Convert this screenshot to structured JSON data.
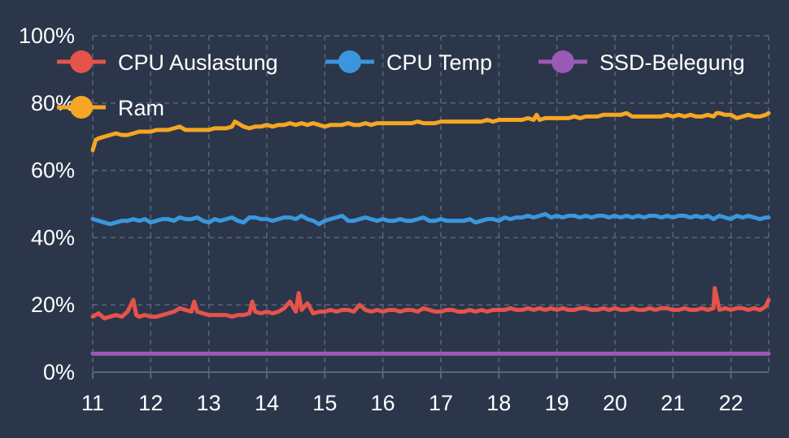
{
  "colors": {
    "background": "#2b364b",
    "grid": "#5a6579",
    "text": "#ffffff"
  },
  "chart_data": {
    "type": "line",
    "title": "",
    "xlabel": "",
    "ylabel": "",
    "xlim": [
      11,
      22.65
    ],
    "ylim": [
      0,
      100
    ],
    "x_ticks": [
      11,
      12,
      13,
      14,
      15,
      16,
      17,
      18,
      19,
      20,
      21,
      22
    ],
    "x_tick_labels": [
      "11",
      "12",
      "13",
      "14",
      "15",
      "16",
      "17",
      "18",
      "19",
      "20",
      "21",
      "22"
    ],
    "y_ticks": [
      0,
      20,
      40,
      60,
      80,
      100
    ],
    "y_tick_labels": [
      "0%",
      "20%",
      "40%",
      "60%",
      "80%",
      "100%"
    ],
    "grid": true,
    "legend_position": "top",
    "series": [
      {
        "name": "CPU Auslastung",
        "color": "#e6534a",
        "x": [
          11.0,
          11.1,
          11.2,
          11.3,
          11.4,
          11.5,
          11.6,
          11.7,
          11.75,
          11.8,
          11.9,
          12.0,
          12.1,
          12.2,
          12.3,
          12.4,
          12.5,
          12.6,
          12.7,
          12.75,
          12.8,
          12.9,
          13.0,
          13.1,
          13.2,
          13.3,
          13.4,
          13.5,
          13.6,
          13.7,
          13.75,
          13.8,
          13.9,
          14.0,
          14.1,
          14.2,
          14.3,
          14.4,
          14.5,
          14.55,
          14.6,
          14.7,
          14.8,
          14.9,
          15.0,
          15.1,
          15.2,
          15.3,
          15.4,
          15.5,
          15.6,
          15.7,
          15.8,
          15.9,
          16.0,
          16.1,
          16.2,
          16.3,
          16.4,
          16.5,
          16.6,
          16.7,
          16.8,
          16.9,
          17.0,
          17.1,
          17.2,
          17.3,
          17.4,
          17.5,
          17.6,
          17.7,
          17.8,
          17.9,
          18.0,
          18.1,
          18.2,
          18.3,
          18.4,
          18.5,
          18.6,
          18.7,
          18.8,
          18.9,
          19.0,
          19.1,
          19.2,
          19.3,
          19.4,
          19.5,
          19.6,
          19.7,
          19.8,
          19.9,
          20.0,
          20.1,
          20.2,
          20.3,
          20.4,
          20.5,
          20.6,
          20.7,
          20.8,
          20.9,
          21.0,
          21.1,
          21.2,
          21.3,
          21.4,
          21.5,
          21.6,
          21.7,
          21.72,
          21.8,
          21.9,
          22.0,
          22.1,
          22.2,
          22.3,
          22.4,
          22.5,
          22.6,
          22.65
        ],
        "values": [
          16.5,
          17.5,
          16.0,
          16.5,
          17.0,
          16.5,
          18.0,
          21.5,
          17.0,
          16.5,
          17.0,
          16.5,
          16.5,
          17.0,
          17.5,
          18.0,
          19.0,
          18.5,
          18.0,
          21.0,
          18.0,
          17.5,
          17.0,
          17.0,
          17.0,
          17.0,
          16.5,
          17.0,
          17.0,
          17.5,
          21.0,
          18.0,
          17.5,
          18.0,
          17.5,
          18.0,
          19.0,
          21.0,
          18.0,
          23.5,
          18.5,
          20.5,
          17.5,
          18.0,
          18.0,
          18.5,
          18.0,
          18.5,
          18.5,
          18.0,
          20.0,
          18.5,
          18.0,
          18.5,
          18.0,
          18.5,
          18.5,
          18.0,
          18.5,
          18.5,
          18.0,
          19.0,
          18.5,
          18.0,
          18.0,
          18.5,
          18.5,
          18.0,
          18.0,
          18.5,
          18.0,
          18.5,
          18.0,
          18.5,
          18.5,
          18.5,
          19.0,
          18.5,
          18.5,
          19.0,
          18.5,
          19.0,
          18.5,
          19.0,
          18.5,
          19.0,
          18.5,
          18.5,
          19.0,
          19.0,
          18.5,
          18.5,
          19.0,
          18.5,
          19.0,
          18.5,
          18.5,
          19.0,
          18.5,
          18.5,
          19.0,
          18.5,
          19.0,
          19.0,
          18.5,
          18.5,
          19.0,
          18.5,
          18.5,
          19.0,
          18.5,
          19.0,
          25.0,
          18.5,
          19.0,
          18.5,
          19.0,
          19.0,
          18.5,
          19.0,
          18.5,
          19.5,
          21.5
        ]
      },
      {
        "name": "CPU Temp",
        "color": "#3a97dd",
        "x": [
          11.0,
          11.1,
          11.2,
          11.3,
          11.4,
          11.5,
          11.6,
          11.7,
          11.8,
          11.9,
          12.0,
          12.1,
          12.2,
          12.3,
          12.4,
          12.5,
          12.6,
          12.7,
          12.8,
          12.9,
          13.0,
          13.1,
          13.2,
          13.3,
          13.4,
          13.5,
          13.6,
          13.7,
          13.8,
          13.9,
          14.0,
          14.1,
          14.2,
          14.3,
          14.4,
          14.5,
          14.6,
          14.7,
          14.8,
          14.9,
          15.0,
          15.1,
          15.2,
          15.3,
          15.4,
          15.5,
          15.6,
          15.7,
          15.8,
          15.9,
          16.0,
          16.1,
          16.2,
          16.3,
          16.4,
          16.5,
          16.6,
          16.7,
          16.8,
          16.9,
          17.0,
          17.1,
          17.2,
          17.3,
          17.4,
          17.5,
          17.6,
          17.7,
          17.8,
          17.9,
          18.0,
          18.1,
          18.2,
          18.3,
          18.4,
          18.5,
          18.6,
          18.7,
          18.8,
          18.9,
          19.0,
          19.1,
          19.2,
          19.3,
          19.4,
          19.5,
          19.6,
          19.7,
          19.8,
          19.9,
          20.0,
          20.1,
          20.2,
          20.3,
          20.4,
          20.5,
          20.6,
          20.7,
          20.8,
          20.9,
          21.0,
          21.1,
          21.2,
          21.3,
          21.4,
          21.5,
          21.6,
          21.7,
          21.8,
          21.9,
          22.0,
          22.1,
          22.2,
          22.3,
          22.4,
          22.5,
          22.6,
          22.65
        ],
        "values": [
          45.5,
          45.0,
          44.5,
          44.0,
          44.5,
          45.0,
          45.0,
          45.5,
          45.0,
          45.5,
          44.5,
          45.0,
          45.5,
          45.5,
          45.0,
          46.0,
          45.5,
          45.5,
          46.0,
          45.0,
          44.5,
          45.5,
          45.0,
          45.5,
          46.0,
          45.0,
          44.5,
          46.0,
          46.0,
          45.5,
          45.5,
          45.0,
          45.5,
          46.0,
          46.0,
          45.5,
          46.5,
          45.5,
          45.0,
          44.0,
          45.0,
          45.5,
          46.0,
          46.5,
          45.0,
          45.0,
          45.5,
          46.0,
          45.5,
          45.0,
          45.5,
          45.0,
          45.0,
          45.5,
          45.0,
          45.0,
          45.5,
          46.0,
          45.0,
          45.0,
          45.5,
          45.0,
          45.0,
          45.0,
          45.0,
          45.5,
          44.5,
          45.0,
          45.5,
          45.5,
          45.0,
          46.0,
          45.5,
          46.0,
          46.0,
          46.5,
          46.0,
          46.5,
          47.0,
          46.0,
          46.5,
          46.0,
          46.5,
          46.5,
          46.0,
          46.5,
          46.0,
          46.5,
          46.5,
          46.0,
          46.5,
          46.0,
          46.5,
          46.0,
          46.5,
          46.0,
          46.5,
          46.5,
          46.0,
          46.5,
          46.0,
          46.5,
          46.5,
          46.0,
          46.5,
          46.0,
          46.5,
          45.5,
          46.5,
          46.0,
          45.5,
          46.5,
          46.0,
          46.5,
          46.0,
          45.5,
          46.0,
          46.0
        ]
      },
      {
        "name": "SSD-Belegung",
        "color": "#9b59b6",
        "x": [
          11.0,
          12.0,
          13.0,
          14.0,
          15.0,
          16.0,
          17.0,
          18.0,
          19.0,
          20.0,
          21.0,
          22.0,
          22.65
        ],
        "values": [
          5.5,
          5.5,
          5.5,
          5.5,
          5.5,
          5.5,
          5.5,
          5.5,
          5.5,
          5.5,
          5.5,
          5.5,
          5.5
        ]
      },
      {
        "name": "Ram",
        "color": "#f6a623",
        "x": [
          11.0,
          11.05,
          11.1,
          11.2,
          11.3,
          11.4,
          11.5,
          11.6,
          11.7,
          11.8,
          11.9,
          12.0,
          12.1,
          12.2,
          12.3,
          12.4,
          12.5,
          12.6,
          12.7,
          12.8,
          12.9,
          13.0,
          13.1,
          13.2,
          13.3,
          13.4,
          13.45,
          13.5,
          13.6,
          13.7,
          13.8,
          13.9,
          14.0,
          14.1,
          14.2,
          14.3,
          14.4,
          14.5,
          14.6,
          14.7,
          14.8,
          14.9,
          15.0,
          15.1,
          15.2,
          15.3,
          15.4,
          15.5,
          15.6,
          15.7,
          15.8,
          15.9,
          16.0,
          16.1,
          16.2,
          16.3,
          16.4,
          16.5,
          16.6,
          16.7,
          16.8,
          16.9,
          17.0,
          17.1,
          17.2,
          17.3,
          17.4,
          17.5,
          17.6,
          17.7,
          17.8,
          17.9,
          18.0,
          18.1,
          18.2,
          18.3,
          18.4,
          18.5,
          18.6,
          18.65,
          18.7,
          18.8,
          18.9,
          19.0,
          19.1,
          19.2,
          19.3,
          19.4,
          19.5,
          19.6,
          19.7,
          19.8,
          19.9,
          20.0,
          20.1,
          20.2,
          20.3,
          20.4,
          20.5,
          20.6,
          20.7,
          20.8,
          20.9,
          21.0,
          21.1,
          21.2,
          21.3,
          21.4,
          21.5,
          21.6,
          21.7,
          21.75,
          21.8,
          21.9,
          22.0,
          22.1,
          22.2,
          22.3,
          22.4,
          22.5,
          22.6,
          22.65
        ],
        "values": [
          66.0,
          69.0,
          69.5,
          70.0,
          70.5,
          71.0,
          70.5,
          70.5,
          71.0,
          71.5,
          71.5,
          71.5,
          72.0,
          72.0,
          72.0,
          72.5,
          73.0,
          72.0,
          72.0,
          72.0,
          72.0,
          72.0,
          72.5,
          72.5,
          72.5,
          73.0,
          74.5,
          74.0,
          73.0,
          72.5,
          73.0,
          73.0,
          73.5,
          73.0,
          73.5,
          73.5,
          74.0,
          73.5,
          74.0,
          73.5,
          74.0,
          73.5,
          73.0,
          73.5,
          73.5,
          73.5,
          74.0,
          73.5,
          73.5,
          74.0,
          73.5,
          74.0,
          74.0,
          74.0,
          74.0,
          74.0,
          74.0,
          74.0,
          74.5,
          74.0,
          74.0,
          74.0,
          74.5,
          74.5,
          74.5,
          74.5,
          74.5,
          74.5,
          74.5,
          74.5,
          75.0,
          74.5,
          75.0,
          75.0,
          75.0,
          75.0,
          75.0,
          75.5,
          75.0,
          76.5,
          75.0,
          75.5,
          75.5,
          75.5,
          75.5,
          75.5,
          76.0,
          75.5,
          76.0,
          76.0,
          76.0,
          76.5,
          76.5,
          76.5,
          76.5,
          77.0,
          76.0,
          76.0,
          76.0,
          76.0,
          76.0,
          76.0,
          76.5,
          76.0,
          76.5,
          76.0,
          76.5,
          76.0,
          76.0,
          76.5,
          76.0,
          77.0,
          77.0,
          76.5,
          76.5,
          75.5,
          76.0,
          76.5,
          76.0,
          76.0,
          76.5,
          77.0
        ]
      }
    ]
  }
}
